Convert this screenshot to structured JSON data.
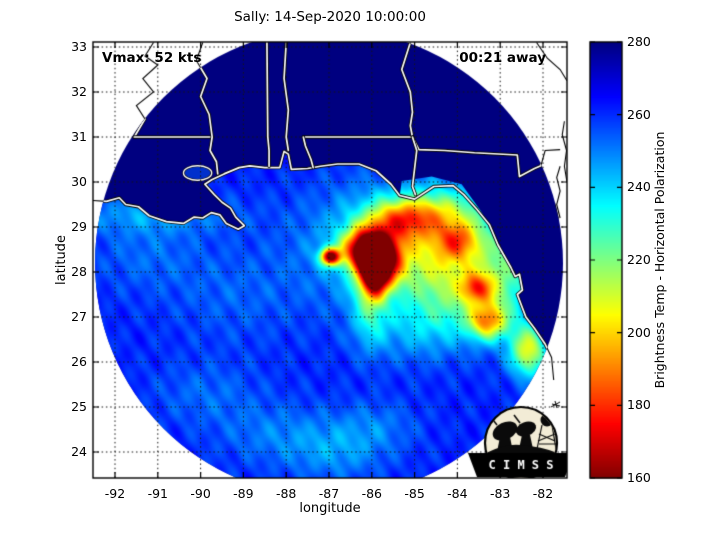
{
  "title": "Sally: 14-Sep-2020 10:00:00",
  "annotations": {
    "vmax": "Vmax: 52 kts",
    "eta": "00:21 away"
  },
  "axes": {
    "xlabel": "longitude",
    "ylabel": "latitude",
    "x_ticks": [
      -92,
      -91,
      -90,
      -89,
      -88,
      -87,
      -86,
      -85,
      -84,
      -83,
      -82
    ],
    "y_ticks": [
      33,
      32,
      31,
      30,
      29,
      28,
      27,
      26,
      25,
      24
    ]
  },
  "colorbar": {
    "label": "Brightness Temp - Horizontal Polarization",
    "ticks": [
      280,
      260,
      240,
      220,
      200,
      180,
      160
    ],
    "min": 160,
    "max": 280
  },
  "logo": {
    "text": "C I M S S"
  },
  "chart_data": {
    "type": "heatmap",
    "title": "Sally: 14-Sep-2020 10:00:00",
    "xlabel": "longitude",
    "ylabel": "latitude",
    "value_label": "Brightness Temp - Horizontal Polarization (K)",
    "value_range": [
      160,
      280
    ],
    "xlim": [
      -92.51,
      -81.44
    ],
    "ylim": [
      23.42,
      33.11
    ],
    "grid": "dotted lines at every integer degree",
    "legend_position": "right colorbar",
    "colormap": "jet-reversed (280 K dark blue to 160 K dark red)",
    "colormap_stops": {
      "280": "#000080",
      "265": "#0000ff",
      "235": "#00ffff",
      "220": "#80ff80",
      "205": "#ffff00",
      "175": "#ff0000",
      "160": "#800000"
    },
    "swath": {
      "center_lon": -87.0,
      "center_lat": 28.2,
      "radius_deg": 5.2,
      "background_temp_K": 280
    },
    "ocean_base_temp_K": 261,
    "cells": [
      {
        "name": "eye-dot",
        "lon": -86.98,
        "lat": 28.35,
        "sx": 0.16,
        "sy": 0.13,
        "drop": 88
      },
      {
        "name": "core-main",
        "lon": -86.1,
        "lat": 28.52,
        "sx": 0.38,
        "sy": 0.3,
        "drop": 92
      },
      {
        "name": "core-south",
        "lon": -85.82,
        "lat": 28.18,
        "sx": 0.32,
        "sy": 0.35,
        "drop": 78
      },
      {
        "name": "core-tail",
        "lon": -85.95,
        "lat": 27.88,
        "sx": 0.2,
        "sy": 0.3,
        "drop": 50
      },
      {
        "name": "anvil",
        "lon": -85.3,
        "lat": 28.6,
        "sx": 1.4,
        "sy": 0.9,
        "drop": 34
      },
      {
        "name": "anvil-east",
        "lon": -84.15,
        "lat": 28.35,
        "sx": 0.9,
        "sy": 0.75,
        "drop": 24
      },
      {
        "name": "north-band",
        "lon": -85.4,
        "lat": 29.15,
        "sx": 0.55,
        "sy": 0.3,
        "drop": 40
      },
      {
        "name": "south-arm",
        "lon": -86.05,
        "lat": 27.4,
        "sx": 0.28,
        "sy": 0.7,
        "drop": 26
      },
      {
        "name": "cell-ne",
        "lon": -84.0,
        "lat": 28.7,
        "sx": 0.33,
        "sy": 0.28,
        "drop": 34
      },
      {
        "name": "cell-east",
        "lon": -83.55,
        "lat": 27.65,
        "sx": 0.25,
        "sy": 0.22,
        "drop": 40
      },
      {
        "name": "cell-se",
        "lon": -83.3,
        "lat": 26.9,
        "sx": 0.3,
        "sy": 0.27,
        "drop": 50
      },
      {
        "name": "cell-coast",
        "lon": -82.35,
        "lat": 26.25,
        "sx": 0.3,
        "sy": 0.4,
        "drop": 52
      },
      {
        "name": "band-se",
        "lon": -83.8,
        "lat": 27.4,
        "sx": 0.8,
        "sy": 0.55,
        "drop": 18
      },
      {
        "name": "band-south",
        "lon": -84.9,
        "lat": 26.7,
        "sx": 0.9,
        "sy": 0.5,
        "drop": 14
      },
      {
        "name": "band-east",
        "lon": -82.9,
        "lat": 27.8,
        "sx": 0.5,
        "sy": 0.8,
        "drop": 20
      },
      {
        "name": "coast-band-ne",
        "lon": -84.5,
        "lat": 29.35,
        "sx": 0.7,
        "sy": 0.35,
        "drop": 26
      },
      {
        "name": "la-coast-band",
        "lon": -91.1,
        "lat": 29.3,
        "sx": 1.3,
        "sy": 0.3,
        "drop": 14
      },
      {
        "name": "west-patch",
        "lon": -91.3,
        "lat": 28.4,
        "sx": 0.9,
        "sy": 0.6,
        "drop": 8
      },
      {
        "name": "mid-patch",
        "lon": -89.2,
        "lat": 27.5,
        "sx": 1.1,
        "sy": 0.8,
        "drop": 7
      },
      {
        "name": "streak-1",
        "lon": -88.2,
        "lat": 24.4,
        "sx": 1.0,
        "sy": 0.5,
        "drop": 10
      },
      {
        "name": "streak-2",
        "lon": -86.8,
        "lat": 24.0,
        "sx": 0.8,
        "sy": 0.45,
        "drop": 12
      },
      {
        "name": "streak-3",
        "lon": -89.9,
        "lat": 25.3,
        "sx": 0.9,
        "sy": 0.5,
        "drop": 8
      },
      {
        "name": "streak-4",
        "lon": -85.9,
        "lat": 24.6,
        "sx": 0.7,
        "sy": 0.4,
        "drop": 9
      }
    ],
    "lake": {
      "name": "lake-pontchartrain",
      "lon": -90.07,
      "lat": 30.2,
      "rx": 0.33,
      "ry": 0.16
    },
    "coastlines": {
      "gulf_coast": [
        [
          -92.7,
          29.6
        ],
        [
          -92.2,
          29.57
        ],
        [
          -91.9,
          29.65
        ],
        [
          -91.75,
          29.5
        ],
        [
          -91.45,
          29.45
        ],
        [
          -91.2,
          29.25
        ],
        [
          -90.8,
          29.12
        ],
        [
          -90.4,
          29.08
        ],
        [
          -90.15,
          29.22
        ],
        [
          -89.95,
          29.2
        ],
        [
          -89.75,
          29.32
        ],
        [
          -89.55,
          29.27
        ],
        [
          -89.4,
          29.08
        ],
        [
          -89.12,
          28.95
        ],
        [
          -88.98,
          29.03
        ],
        [
          -89.18,
          29.22
        ],
        [
          -89.3,
          29.42
        ],
        [
          -89.5,
          29.55
        ],
        [
          -89.68,
          29.72
        ],
        [
          -89.9,
          29.95
        ],
        [
          -89.74,
          30.05
        ],
        [
          -89.45,
          30.18
        ],
        [
          -89.1,
          30.32
        ],
        [
          -88.85,
          30.36
        ],
        [
          -88.5,
          30.32
        ],
        [
          -88.15,
          30.32
        ],
        [
          -88.05,
          30.68
        ],
        [
          -87.95,
          30.62
        ],
        [
          -87.88,
          30.28
        ],
        [
          -87.5,
          30.3
        ],
        [
          -87.2,
          30.35
        ],
        [
          -86.8,
          30.4
        ],
        [
          -86.3,
          30.4
        ],
        [
          -85.9,
          30.25
        ],
        [
          -85.55,
          29.95
        ],
        [
          -85.35,
          29.7
        ],
        [
          -85.0,
          29.62
        ],
        [
          -84.55,
          29.9
        ],
        [
          -84.1,
          29.92
        ],
        [
          -83.85,
          29.72
        ],
        [
          -83.55,
          29.4
        ],
        [
          -83.25,
          29.05
        ],
        [
          -83.05,
          28.6
        ],
        [
          -82.75,
          28.1
        ],
        [
          -82.65,
          27.9
        ],
        [
          -82.55,
          27.95
        ],
        [
          -82.48,
          27.6
        ],
        [
          -82.6,
          27.5
        ],
        [
          -82.4,
          27.0
        ],
        [
          -82.2,
          26.75
        ],
        [
          -81.95,
          26.4
        ],
        [
          -81.8,
          26.1
        ],
        [
          -81.75,
          25.6
        ]
      ],
      "atlantic_coast": [
        [
          -81.5,
          31.35
        ],
        [
          -81.55,
          31.05
        ],
        [
          -81.45,
          30.7
        ],
        [
          -81.5,
          30.35
        ],
        [
          -81.44,
          30.0
        ]
      ]
    },
    "borders": {
      "la_ms_river": [
        [
          -91.1,
          33.1
        ],
        [
          -91.3,
          32.8
        ],
        [
          -91.0,
          32.6
        ],
        [
          -91.35,
          32.3
        ],
        [
          -91.1,
          32.0
        ],
        [
          -91.5,
          31.7
        ],
        [
          -91.3,
          31.4
        ],
        [
          -91.55,
          31.0
        ]
      ],
      "la_ms_31n": [
        [
          -91.55,
          31.0
        ],
        [
          -89.73,
          31.0
        ]
      ],
      "ms_al": [
        [
          -88.45,
          33.1
        ],
        [
          -88.43,
          31.0
        ],
        [
          -88.4,
          30.7
        ],
        [
          -88.4,
          30.35
        ]
      ],
      "fl_al_31n": [
        [
          -87.6,
          31.0
        ],
        [
          -85.05,
          31.0
        ]
      ],
      "perdido_river": [
        [
          -87.6,
          31.0
        ],
        [
          -87.55,
          30.8
        ],
        [
          -87.42,
          30.5
        ],
        [
          -87.37,
          30.32
        ]
      ],
      "al_ga": [
        [
          -85.1,
          33.1
        ],
        [
          -85.3,
          32.5
        ],
        [
          -85.1,
          32.0
        ],
        [
          -85.05,
          31.55
        ],
        [
          -85.1,
          31.25
        ],
        [
          -85.05,
          31.0
        ]
      ],
      "fl_ga": [
        [
          -85.05,
          31.0
        ],
        [
          -84.9,
          30.72
        ],
        [
          -84.3,
          30.7
        ],
        [
          -83.6,
          30.65
        ],
        [
          -82.6,
          30.6
        ],
        [
          -82.55,
          30.12
        ],
        [
          -82.2,
          30.3
        ],
        [
          -82.05,
          30.36
        ],
        [
          -81.95,
          30.7
        ],
        [
          -81.6,
          30.72
        ]
      ]
    },
    "rivers": {
      "pearl_river": [
        [
          -89.95,
          33.1
        ],
        [
          -90.1,
          32.7
        ],
        [
          -89.85,
          32.3
        ],
        [
          -90.0,
          31.9
        ],
        [
          -89.8,
          31.5
        ],
        [
          -89.73,
          31.0
        ],
        [
          -89.78,
          30.7
        ],
        [
          -89.63,
          30.45
        ],
        [
          -89.6,
          30.18
        ]
      ],
      "mobile_river": [
        [
          -88.0,
          33.1
        ],
        [
          -88.05,
          32.3
        ],
        [
          -87.95,
          31.6
        ],
        [
          -88.0,
          31.0
        ],
        [
          -87.95,
          30.7
        ]
      ],
      "apalachicola_river": [
        [
          -85.05,
          31.0
        ],
        [
          -84.95,
          30.7
        ],
        [
          -85.0,
          30.3
        ],
        [
          -85.05,
          29.9
        ],
        [
          -84.98,
          29.72
        ]
      ],
      "savannah_river": [
        [
          -82.15,
          33.1
        ],
        [
          -81.9,
          32.75
        ],
        [
          -81.6,
          32.5
        ],
        [
          -81.44,
          32.25
        ]
      ],
      "st_johns_river": [
        [
          -81.6,
          30.35
        ],
        [
          -81.68,
          30.1
        ],
        [
          -81.6,
          29.8
        ],
        [
          -81.68,
          29.5
        ],
        [
          -81.6,
          29.2
        ]
      ]
    }
  }
}
